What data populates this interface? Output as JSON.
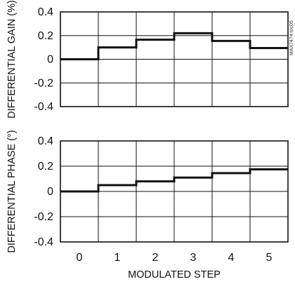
{
  "chart_data": [
    {
      "type": "line",
      "step": true,
      "ylabel": "DIFFERENTIAL GAIN (%)",
      "ylim": [
        -0.4,
        0.4
      ],
      "yticks": [
        "0.4",
        "0.2",
        "0",
        "-0.2",
        "-0.4"
      ],
      "x": [
        0,
        1,
        2,
        3,
        4,
        5
      ],
      "values": [
        0.0,
        0.1,
        0.165,
        0.22,
        0.155,
        0.095
      ],
      "grid": true,
      "watermark": "MAX7474 toc05"
    },
    {
      "type": "line",
      "step": true,
      "ylabel": "DIFFERENTIAL PHASE (°)",
      "xlabel": "MODULATED STEP",
      "ylim": [
        -0.4,
        0.4
      ],
      "yticks": [
        "0.4",
        "0.2",
        "0",
        "-0.2",
        "-0.4"
      ],
      "xticks": [
        "0",
        "1",
        "2",
        "3",
        "4",
        "5"
      ],
      "x": [
        0,
        1,
        2,
        3,
        4,
        5
      ],
      "values": [
        0.0,
        0.05,
        0.08,
        0.11,
        0.145,
        0.175
      ],
      "grid": true
    }
  ]
}
